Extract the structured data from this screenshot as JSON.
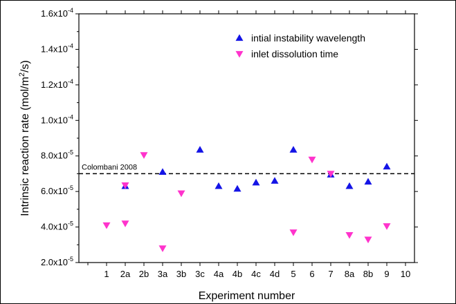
{
  "colors": {
    "series1": "#1414e6",
    "series2": "#ff33cc",
    "reference": "#000000"
  },
  "chart_data": {
    "type": "scatter",
    "title": "",
    "xlabel": "Experiment number",
    "ylabel": "Intrinsic reaction rate (mol/m²/s)",
    "ylim": [
      2e-05,
      0.00016
    ],
    "y_ticks": [
      {
        "value": 2e-05,
        "mantissa": "2.0x10",
        "exp": "-5"
      },
      {
        "value": 4e-05,
        "mantissa": "4.0x10",
        "exp": "-5"
      },
      {
        "value": 6e-05,
        "mantissa": "6.0x10",
        "exp": "-5"
      },
      {
        "value": 8e-05,
        "mantissa": "8.0x10",
        "exp": "-5"
      },
      {
        "value": 0.0001,
        "mantissa": "1.0x10",
        "exp": "-4"
      },
      {
        "value": 0.00012,
        "mantissa": "1.2x10",
        "exp": "-4"
      },
      {
        "value": 0.00014,
        "mantissa": "1.4x10",
        "exp": "-4"
      },
      {
        "value": 0.00016,
        "mantissa": "1.6x10",
        "exp": "-4"
      }
    ],
    "categories": [
      "1",
      "2a",
      "2b",
      "3a",
      "3b",
      "3c",
      "4a",
      "4b",
      "4c",
      "4d",
      "5",
      "6",
      "7",
      "8a",
      "8b",
      "9",
      "10"
    ],
    "series": [
      {
        "name": "intial instability wavelength",
        "marker": "triangle-up",
        "points": [
          {
            "x": "2a",
            "y": 6.3e-05
          },
          {
            "x": "3a",
            "y": 7.1e-05
          },
          {
            "x": "3c",
            "y": 8.35e-05
          },
          {
            "x": "4a",
            "y": 6.3e-05
          },
          {
            "x": "4b",
            "y": 6.15e-05
          },
          {
            "x": "4c",
            "y": 6.5e-05
          },
          {
            "x": "4d",
            "y": 6.6e-05
          },
          {
            "x": "5",
            "y": 8.35e-05
          },
          {
            "x": "7",
            "y": 6.95e-05
          },
          {
            "x": "8a",
            "y": 6.3e-05
          },
          {
            "x": "8b",
            "y": 6.55e-05
          },
          {
            "x": "9",
            "y": 7.4e-05
          }
        ]
      },
      {
        "name": "inlet dissolution time",
        "marker": "triangle-down",
        "points": [
          {
            "x": "1",
            "y": 4.1e-05
          },
          {
            "x": "2a",
            "y": 4.2e-05
          },
          {
            "x": "2a",
            "y": 6.35e-05
          },
          {
            "x": "2b",
            "y": 8.05e-05
          },
          {
            "x": "3a",
            "y": 2.8e-05
          },
          {
            "x": "3b",
            "y": 5.9e-05
          },
          {
            "x": "5",
            "y": 3.7e-05
          },
          {
            "x": "6",
            "y": 7.8e-05
          },
          {
            "x": "7",
            "y": 7e-05
          },
          {
            "x": "8a",
            "y": 3.55e-05
          },
          {
            "x": "8b",
            "y": 3.3e-05
          },
          {
            "x": "9",
            "y": 4.05e-05
          }
        ]
      }
    ],
    "reference_line": {
      "label": "Colombani 2008",
      "y": 7e-05,
      "style": "dashed"
    },
    "legend": {
      "position": "top-right"
    },
    "grid": false
  }
}
